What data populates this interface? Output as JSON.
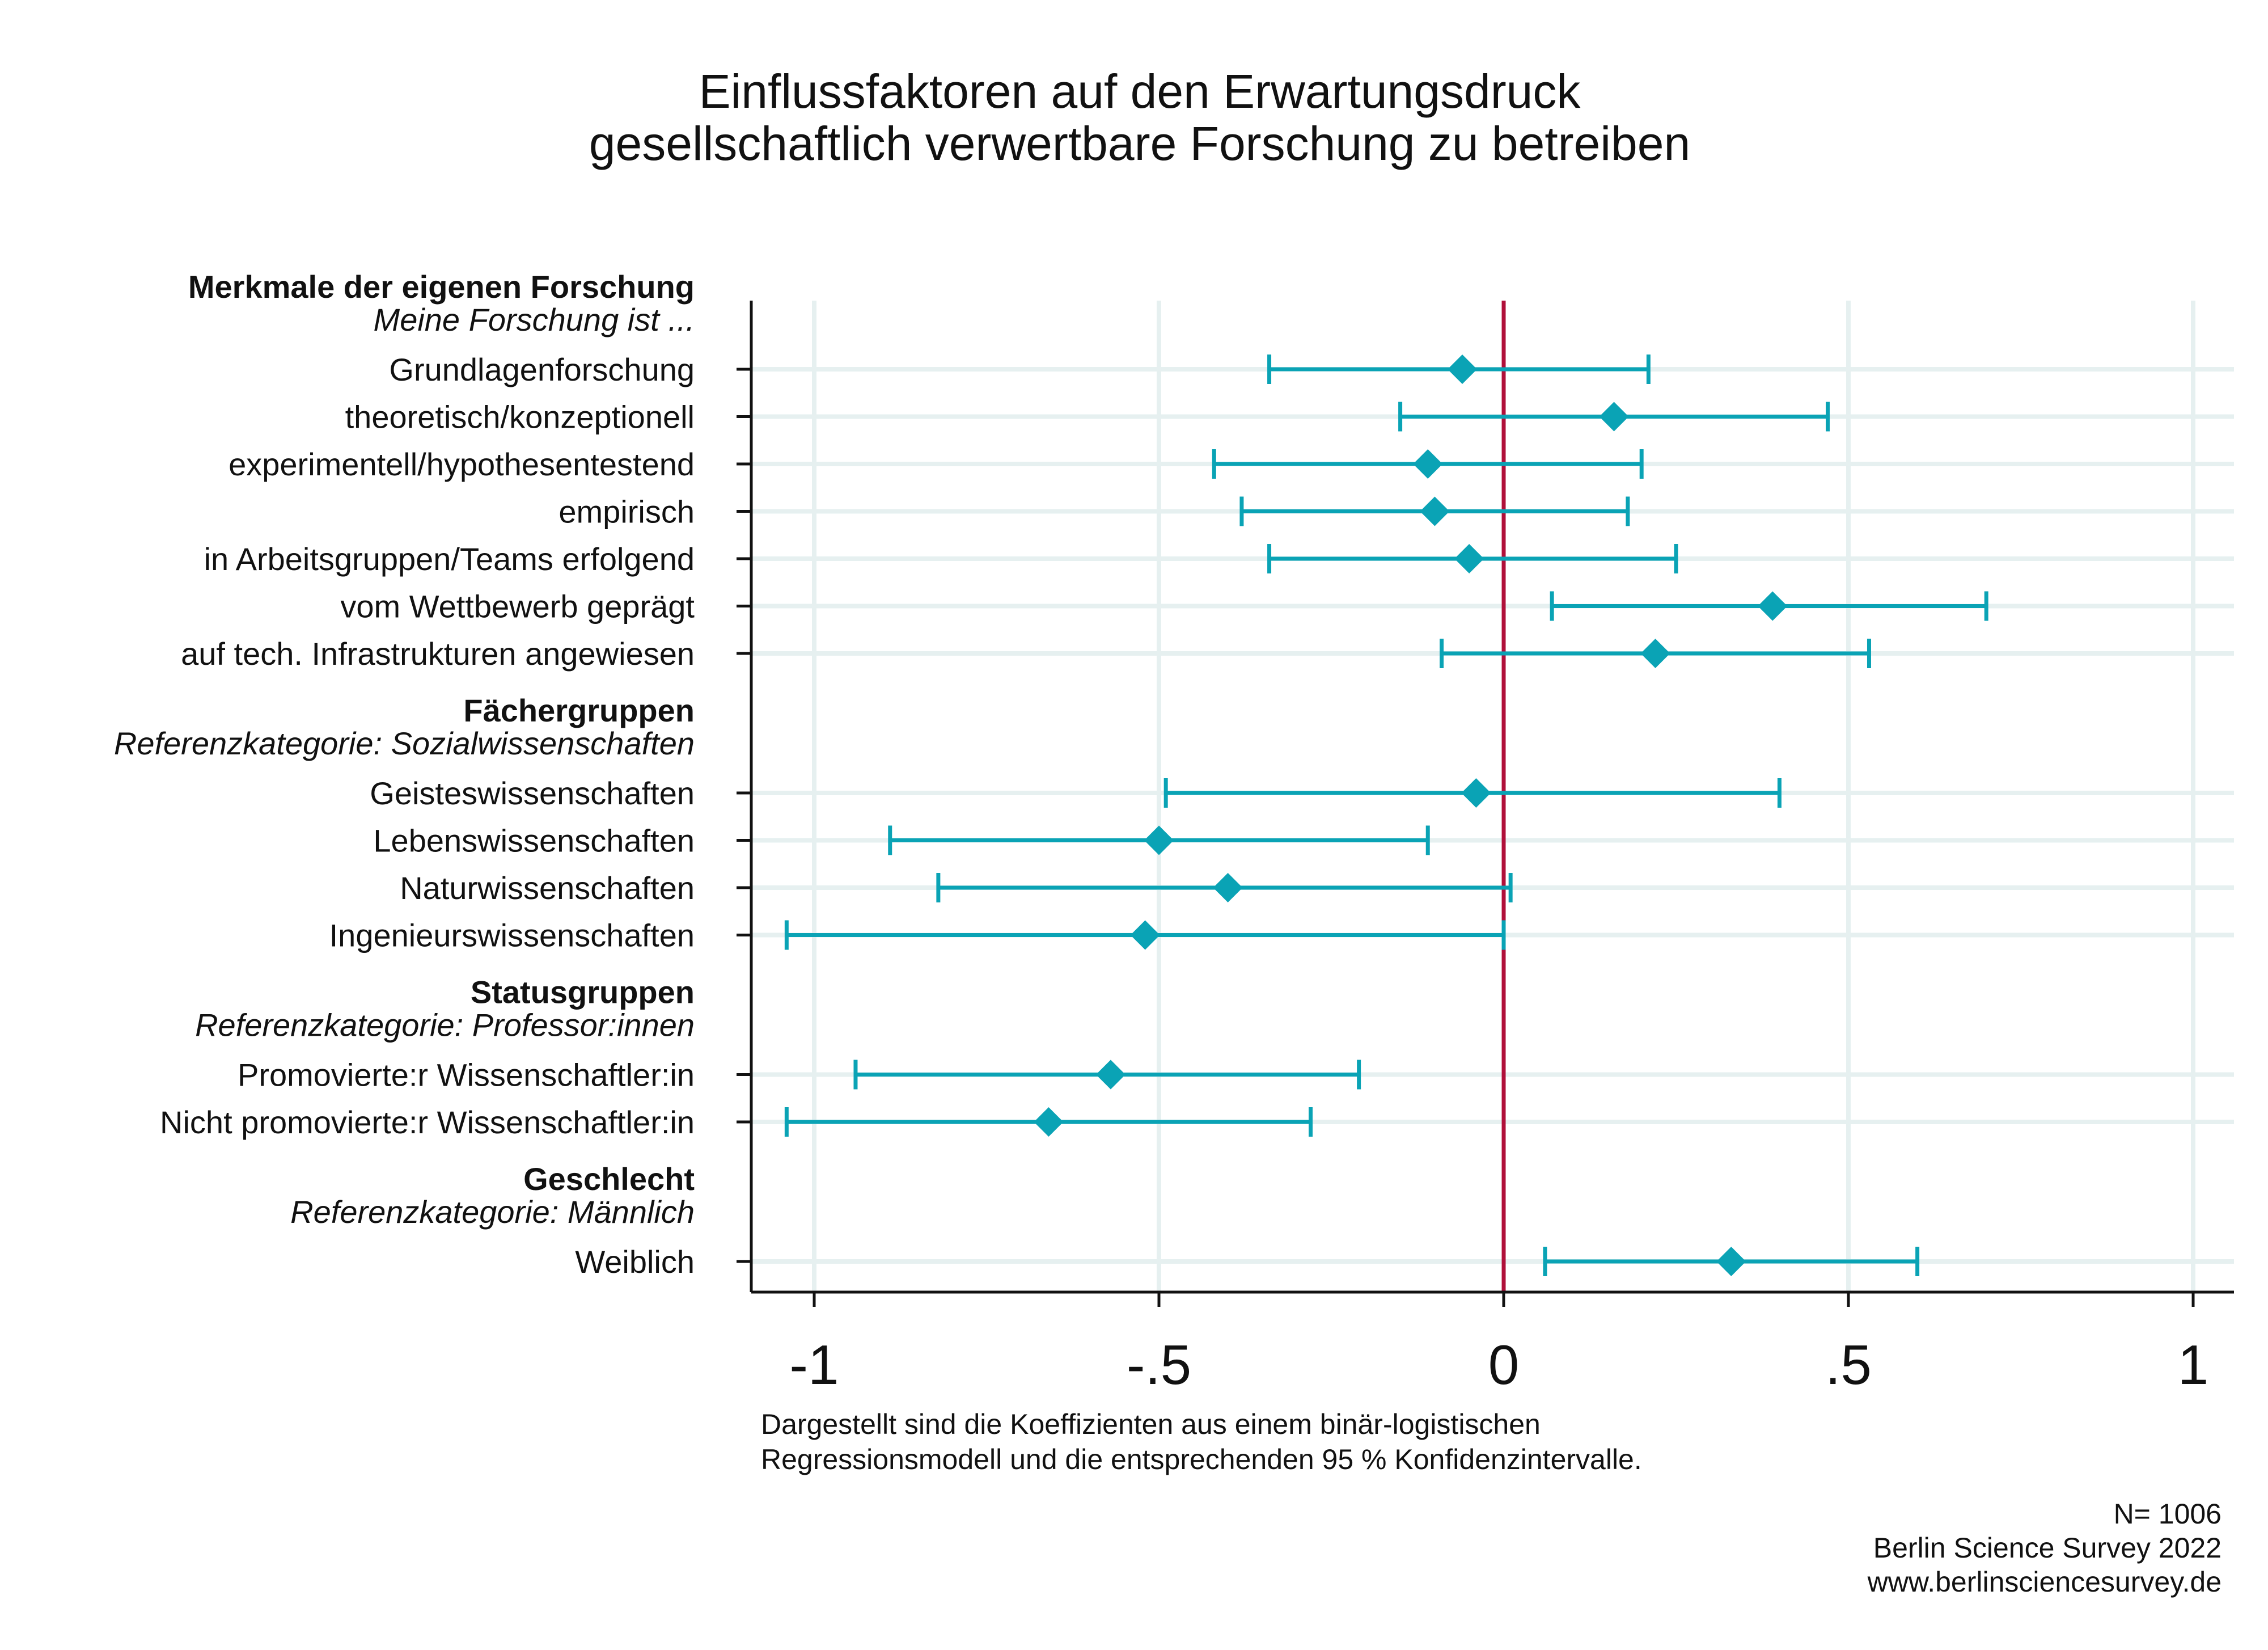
{
  "title_lines": [
    "Einflussfaktoren auf den Erwartungsdruck",
    "gesellschaftlich verwertbare Forschung zu betreiben"
  ],
  "colors": {
    "marker": "#0aa3b5",
    "reference_line": "#b0103a",
    "grid": "#e6f0f0",
    "axis": "#111111"
  },
  "chart_data": {
    "type": "scatter",
    "subtype": "coefficient plot with 95% confidence intervals (horizontal)",
    "x_ticks": [
      "-1",
      "-.5",
      "0",
      ".5",
      "1"
    ],
    "x_tick_values": [
      -1,
      -0.5,
      0,
      0.5,
      1
    ],
    "xlim": [
      -1.1,
      1.05
    ],
    "reference_line_x": 0,
    "grid": true,
    "groups": [
      {
        "heading": "Merkmale der eigenen Forschung",
        "subheading": "Meine Forschung ist ...",
        "items": [
          {
            "label": "Grundlagenforschung",
            "coef": -0.06,
            "ci": [
              -0.34,
              0.21
            ]
          },
          {
            "label": "theoretisch/konzeptionell",
            "coef": 0.16,
            "ci": [
              -0.15,
              0.47
            ]
          },
          {
            "label": "experimentell/hypothesentestend",
            "coef": -0.11,
            "ci": [
              -0.42,
              0.2
            ]
          },
          {
            "label": "empirisch",
            "coef": -0.1,
            "ci": [
              -0.38,
              0.18
            ]
          },
          {
            "label": "in Arbeitsgruppen/Teams erfolgend",
            "coef": -0.05,
            "ci": [
              -0.34,
              0.25
            ]
          },
          {
            "label": "vom Wettbewerb geprägt",
            "coef": 0.39,
            "ci": [
              0.07,
              0.7
            ]
          },
          {
            "label": "auf tech. Infrastrukturen angewiesen",
            "coef": 0.22,
            "ci": [
              -0.09,
              0.53
            ]
          }
        ]
      },
      {
        "heading": "Fächergruppen",
        "subheading": "Referenzkategorie: Sozialwissenschaften",
        "items": [
          {
            "label": "Geisteswissenschaften",
            "coef": -0.04,
            "ci": [
              -0.49,
              0.4
            ]
          },
          {
            "label": "Lebenswissenschaften",
            "coef": -0.5,
            "ci": [
              -0.89,
              -0.11
            ]
          },
          {
            "label": "Naturwissenschaften",
            "coef": -0.4,
            "ci": [
              -0.82,
              0.01
            ]
          },
          {
            "label": "Ingenieurswissenschaften",
            "coef": -0.52,
            "ci": [
              -1.04,
              0.0
            ]
          }
        ]
      },
      {
        "heading": "Statusgruppen",
        "subheading": "Referenzkategorie: Professor:innen",
        "items": [
          {
            "label": "Promovierte:r Wissenschaftler:in",
            "coef": -0.57,
            "ci": [
              -0.94,
              -0.21
            ]
          },
          {
            "label": "Nicht promovierte:r Wissenschaftler:in",
            "coef": -0.66,
            "ci": [
              -1.04,
              -0.28
            ]
          }
        ]
      },
      {
        "heading": "Geschlecht",
        "subheading": "Referenzkategorie: Männlich",
        "items": [
          {
            "label": "Weiblich",
            "coef": 0.33,
            "ci": [
              0.06,
              0.6
            ]
          }
        ]
      }
    ]
  },
  "note_lines": [
    "Dargestellt sind die Koeffizienten aus einem binär-logistischen",
    "Regressionsmodell und die entsprechenden 95 % Konfidenzintervalle."
  ],
  "source_lines": [
    "N= 1006",
    "Berlin Science Survey 2022",
    "www.berlinsciencesurvey.de"
  ]
}
